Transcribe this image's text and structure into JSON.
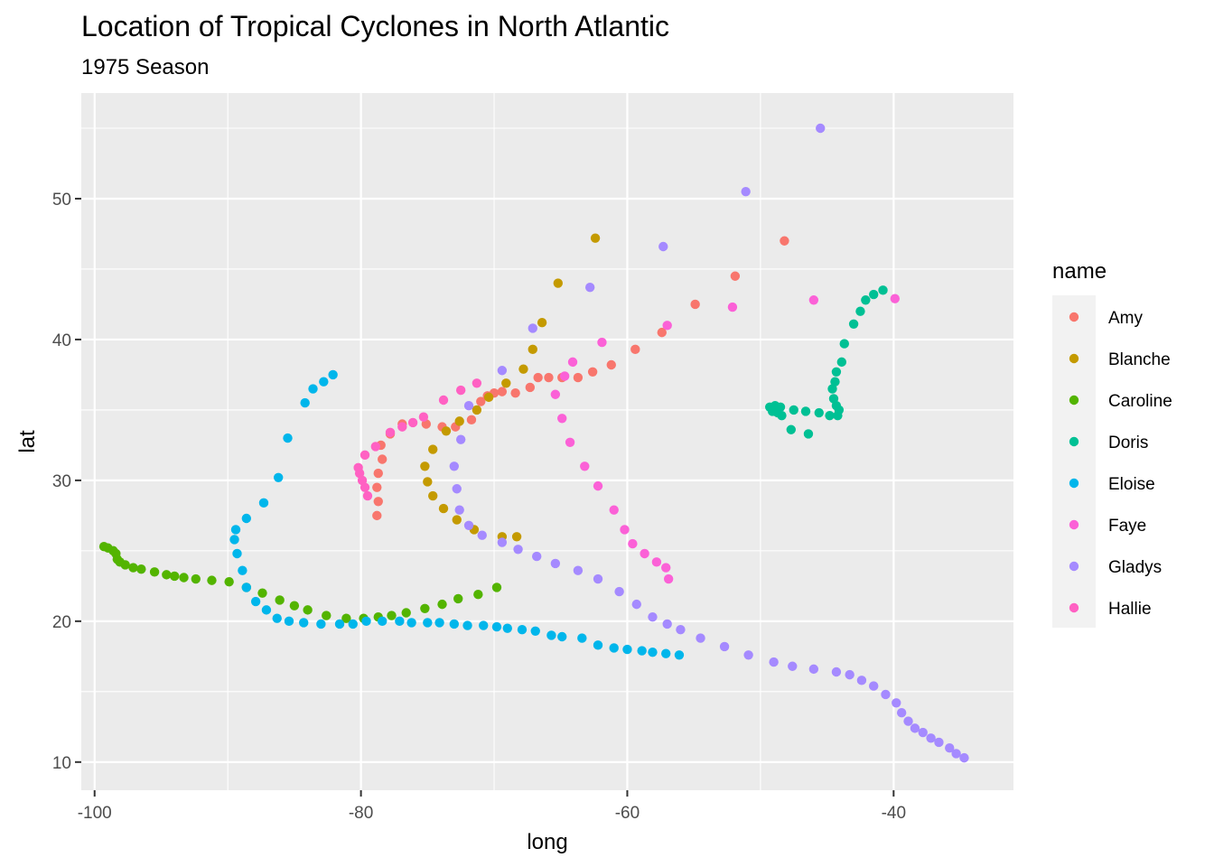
{
  "chart_data": {
    "type": "scatter",
    "title": "Location of Tropical Cyclones in North Atlantic",
    "subtitle": "1975 Season",
    "xlabel": "long",
    "ylabel": "lat",
    "xlim": [
      -101,
      -31
    ],
    "ylim": [
      8,
      57.5
    ],
    "x_ticks": [
      -100,
      -80,
      -60,
      -40
    ],
    "y_ticks": [
      10,
      20,
      30,
      40,
      50
    ],
    "x_tick_labels": [
      "-100",
      "-80",
      "-60",
      "-40"
    ],
    "y_tick_labels": [
      "10",
      "20",
      "30",
      "40",
      "50"
    ],
    "grid": true,
    "legend": {
      "title": "name",
      "position": "right"
    },
    "series": [
      {
        "name": "Amy",
        "color": "#F8766D",
        "points": [
          [
            -78.8,
            27.5
          ],
          [
            -78.7,
            28.5
          ],
          [
            -78.8,
            29.5
          ],
          [
            -78.7,
            30.5
          ],
          [
            -78.4,
            31.5
          ],
          [
            -78.5,
            32.5
          ],
          [
            -77.8,
            33.3
          ],
          [
            -76.9,
            34.0
          ],
          [
            -75.1,
            34.0
          ],
          [
            -73.9,
            33.8
          ],
          [
            -72.9,
            33.8
          ],
          [
            -71.7,
            34.3
          ],
          [
            -71.0,
            35.6
          ],
          [
            -70.5,
            36.0
          ],
          [
            -70.0,
            36.2
          ],
          [
            -69.4,
            36.3
          ],
          [
            -68.4,
            36.2
          ],
          [
            -67.3,
            36.6
          ],
          [
            -66.7,
            37.3
          ],
          [
            -65.9,
            37.3
          ],
          [
            -64.9,
            37.3
          ],
          [
            -63.7,
            37.3
          ],
          [
            -62.6,
            37.7
          ],
          [
            -61.2,
            38.2
          ],
          [
            -59.4,
            39.3
          ],
          [
            -57.4,
            40.5
          ],
          [
            -54.9,
            42.5
          ],
          [
            -51.9,
            44.5
          ],
          [
            -48.2,
            47.0
          ]
        ]
      },
      {
        "name": "Blanche",
        "color": "#C49A00",
        "points": [
          [
            -68.3,
            26.0
          ],
          [
            -69.4,
            26.0
          ],
          [
            -71.5,
            26.5
          ],
          [
            -72.8,
            27.2
          ],
          [
            -73.8,
            28.0
          ],
          [
            -74.6,
            28.9
          ],
          [
            -75.0,
            29.9
          ],
          [
            -75.2,
            31.0
          ],
          [
            -74.6,
            32.2
          ],
          [
            -73.6,
            33.5
          ],
          [
            -72.6,
            34.2
          ],
          [
            -71.3,
            35.0
          ],
          [
            -70.4,
            35.9
          ],
          [
            -69.1,
            36.9
          ],
          [
            -67.8,
            37.9
          ],
          [
            -67.1,
            39.3
          ],
          [
            -66.4,
            41.2
          ],
          [
            -65.2,
            44.0
          ],
          [
            -62.4,
            47.2
          ]
        ]
      },
      {
        "name": "Caroline",
        "color": "#53B400",
        "points": [
          [
            -69.8,
            22.4
          ],
          [
            -71.2,
            21.9
          ],
          [
            -72.7,
            21.6
          ],
          [
            -73.9,
            21.2
          ],
          [
            -75.2,
            20.9
          ],
          [
            -76.6,
            20.6
          ],
          [
            -77.7,
            20.4
          ],
          [
            -78.7,
            20.3
          ],
          [
            -79.8,
            20.2
          ],
          [
            -81.1,
            20.2
          ],
          [
            -82.6,
            20.4
          ],
          [
            -84.0,
            20.8
          ],
          [
            -85.0,
            21.1
          ],
          [
            -86.1,
            21.5
          ],
          [
            -87.4,
            22.0
          ],
          [
            -88.6,
            22.4
          ],
          [
            -89.9,
            22.8
          ],
          [
            -91.2,
            22.9
          ],
          [
            -92.4,
            23.0
          ],
          [
            -93.3,
            23.1
          ],
          [
            -94.0,
            23.2
          ],
          [
            -94.6,
            23.3
          ],
          [
            -95.5,
            23.5
          ],
          [
            -96.5,
            23.7
          ],
          [
            -97.1,
            23.8
          ],
          [
            -97.7,
            24.0
          ],
          [
            -98.1,
            24.2
          ],
          [
            -98.3,
            24.4
          ],
          [
            -98.4,
            24.8
          ],
          [
            -98.6,
            25.0
          ],
          [
            -99.0,
            25.2
          ],
          [
            -99.3,
            25.3
          ]
        ]
      },
      {
        "name": "Doris",
        "color": "#00C094",
        "points": [
          [
            -46.4,
            33.3
          ],
          [
            -47.7,
            33.6
          ],
          [
            -48.4,
            34.6
          ],
          [
            -48.5,
            35.2
          ],
          [
            -48.9,
            35.3
          ],
          [
            -49.3,
            35.2
          ],
          [
            -49.1,
            34.9
          ],
          [
            -48.7,
            34.8
          ],
          [
            -47.5,
            35.0
          ],
          [
            -46.6,
            34.9
          ],
          [
            -45.6,
            34.8
          ],
          [
            -44.8,
            34.6
          ],
          [
            -44.2,
            34.6
          ],
          [
            -44.1,
            35.0
          ],
          [
            -44.3,
            35.3
          ],
          [
            -44.5,
            35.8
          ],
          [
            -44.6,
            36.5
          ],
          [
            -44.4,
            37.0
          ],
          [
            -44.3,
            37.7
          ],
          [
            -43.9,
            38.4
          ],
          [
            -43.7,
            39.7
          ],
          [
            -43.0,
            41.1
          ],
          [
            -42.5,
            42.0
          ],
          [
            -42.1,
            42.8
          ],
          [
            -41.5,
            43.2
          ],
          [
            -40.8,
            43.5
          ]
        ]
      },
      {
        "name": "Eloise",
        "color": "#00B6EB",
        "points": [
          [
            -56.1,
            17.6
          ],
          [
            -57.1,
            17.7
          ],
          [
            -58.1,
            17.8
          ],
          [
            -58.9,
            17.9
          ],
          [
            -60.0,
            18.0
          ],
          [
            -61.0,
            18.1
          ],
          [
            -62.2,
            18.3
          ],
          [
            -63.4,
            18.8
          ],
          [
            -64.9,
            18.9
          ],
          [
            -65.7,
            19.0
          ],
          [
            -66.9,
            19.3
          ],
          [
            -67.9,
            19.4
          ],
          [
            -69.0,
            19.5
          ],
          [
            -69.8,
            19.6
          ],
          [
            -70.8,
            19.7
          ],
          [
            -72.0,
            19.7
          ],
          [
            -73.0,
            19.8
          ],
          [
            -74.1,
            19.9
          ],
          [
            -75.0,
            19.9
          ],
          [
            -76.2,
            19.9
          ],
          [
            -77.1,
            20.0
          ],
          [
            -78.4,
            20.0
          ],
          [
            -79.6,
            20.0
          ],
          [
            -80.6,
            19.8
          ],
          [
            -81.6,
            19.8
          ],
          [
            -83.0,
            19.8
          ],
          [
            -84.3,
            19.9
          ],
          [
            -85.4,
            20.0
          ],
          [
            -86.3,
            20.2
          ],
          [
            -87.1,
            20.8
          ],
          [
            -87.9,
            21.4
          ],
          [
            -88.6,
            22.4
          ],
          [
            -88.9,
            23.6
          ],
          [
            -89.3,
            24.8
          ],
          [
            -89.5,
            25.8
          ],
          [
            -89.4,
            26.5
          ],
          [
            -88.6,
            27.3
          ],
          [
            -87.3,
            28.4
          ],
          [
            -86.2,
            30.2
          ],
          [
            -85.5,
            33.0
          ],
          [
            -84.2,
            35.5
          ],
          [
            -83.6,
            36.5
          ],
          [
            -82.8,
            37.0
          ],
          [
            -82.1,
            37.5
          ]
        ]
      },
      {
        "name": "Faye",
        "color": "#FB61D7",
        "points": [
          [
            -56.9,
            23.0
          ],
          [
            -57.1,
            23.8
          ],
          [
            -57.8,
            24.2
          ],
          [
            -58.7,
            24.8
          ],
          [
            -59.6,
            25.5
          ],
          [
            -60.2,
            26.5
          ],
          [
            -61.0,
            27.9
          ],
          [
            -62.2,
            29.6
          ],
          [
            -63.2,
            31.0
          ],
          [
            -64.3,
            32.7
          ],
          [
            -64.9,
            34.4
          ],
          [
            -65.4,
            36.1
          ],
          [
            -64.7,
            37.4
          ],
          [
            -64.1,
            38.4
          ],
          [
            -61.9,
            39.8
          ],
          [
            -57.0,
            41.0
          ],
          [
            -52.1,
            42.3
          ],
          [
            -46.0,
            42.8
          ],
          [
            -39.9,
            42.9
          ]
        ]
      },
      {
        "name": "Gladys",
        "color": "#A58AFF",
        "points": [
          [
            -34.7,
            10.3
          ],
          [
            -35.3,
            10.6
          ],
          [
            -35.8,
            11.0
          ],
          [
            -36.6,
            11.4
          ],
          [
            -37.2,
            11.7
          ],
          [
            -37.8,
            12.1
          ],
          [
            -38.4,
            12.4
          ],
          [
            -38.9,
            12.9
          ],
          [
            -39.4,
            13.5
          ],
          [
            -39.8,
            14.2
          ],
          [
            -40.6,
            14.8
          ],
          [
            -41.5,
            15.4
          ],
          [
            -42.4,
            15.8
          ],
          [
            -43.3,
            16.2
          ],
          [
            -44.3,
            16.4
          ],
          [
            -46.0,
            16.6
          ],
          [
            -47.6,
            16.8
          ],
          [
            -49.0,
            17.1
          ],
          [
            -50.9,
            17.6
          ],
          [
            -52.7,
            18.2
          ],
          [
            -54.5,
            18.8
          ],
          [
            -56.0,
            19.4
          ],
          [
            -57.0,
            19.8
          ],
          [
            -58.1,
            20.3
          ],
          [
            -59.3,
            21.2
          ],
          [
            -60.6,
            22.1
          ],
          [
            -62.2,
            23.0
          ],
          [
            -63.7,
            23.6
          ],
          [
            -65.4,
            24.1
          ],
          [
            -66.8,
            24.6
          ],
          [
            -68.2,
            25.1
          ],
          [
            -69.4,
            25.6
          ],
          [
            -70.9,
            26.1
          ],
          [
            -71.9,
            26.8
          ],
          [
            -72.6,
            27.9
          ],
          [
            -72.8,
            29.4
          ],
          [
            -73.0,
            31.0
          ],
          [
            -72.5,
            32.9
          ],
          [
            -71.9,
            35.3
          ],
          [
            -69.4,
            37.8
          ],
          [
            -67.1,
            40.8
          ],
          [
            -62.8,
            43.7
          ],
          [
            -57.3,
            46.6
          ],
          [
            -51.1,
            50.5
          ],
          [
            -45.5,
            55.0
          ]
        ]
      },
      {
        "name": "Hallie",
        "color": "#FF61C3",
        "points": [
          [
            -79.5,
            28.9
          ],
          [
            -79.7,
            29.5
          ],
          [
            -79.9,
            30.0
          ],
          [
            -80.1,
            30.5
          ],
          [
            -80.2,
            30.9
          ],
          [
            -79.7,
            31.8
          ],
          [
            -78.9,
            32.4
          ],
          [
            -77.8,
            33.4
          ],
          [
            -76.9,
            33.8
          ],
          [
            -76.1,
            34.1
          ],
          [
            -75.3,
            34.5
          ],
          [
            -73.8,
            35.7
          ],
          [
            -72.5,
            36.4
          ],
          [
            -71.3,
            36.9
          ]
        ]
      }
    ]
  }
}
